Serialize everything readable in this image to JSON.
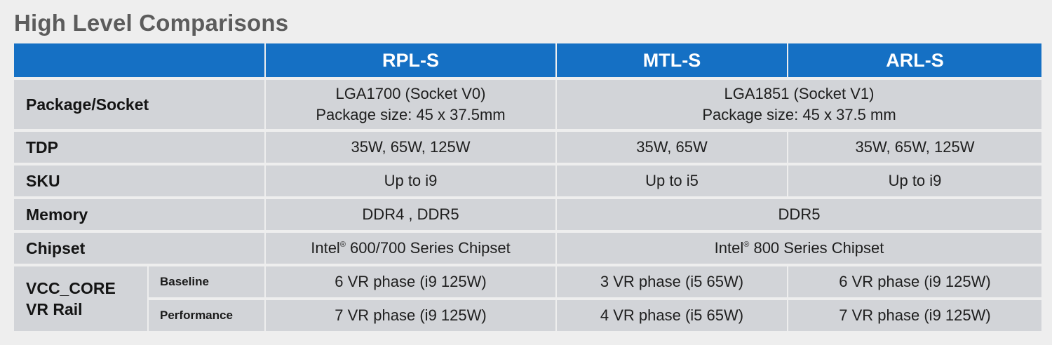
{
  "title": "High Level Comparisons",
  "columns": [
    "",
    "RPL-S",
    "MTL-S",
    "ARL-S"
  ],
  "rows": {
    "package": {
      "label": "Package/Socket",
      "rpl_line1": "LGA1700 (Socket V0)",
      "rpl_line2": "Package size: 45 x 37.5mm",
      "mtl_arl_line1": "LGA1851 (Socket V1)",
      "mtl_arl_line2": "Package size: 45 x 37.5 mm"
    },
    "tdp": {
      "label": "TDP",
      "rpl": "35W, 65W, 125W",
      "mtl": "35W, 65W",
      "arl": "35W, 65W, 125W"
    },
    "sku": {
      "label": "SKU",
      "rpl": "Up to i9",
      "mtl": "Up to i5",
      "arl": "Up to i9"
    },
    "memory": {
      "label": "Memory",
      "rpl": "DDR4 , DDR5",
      "mtl_arl": "DDR5"
    },
    "chipset": {
      "label": "Chipset",
      "rpl_prefix": "Intel",
      "rpl_suffix": " 600/700 Series Chipset",
      "mtl_arl_prefix": "Intel",
      "mtl_arl_suffix": " 800 Series Chipset",
      "reg_mark": "®"
    },
    "vcc": {
      "label_line1": "VCC_CORE",
      "label_line2": "VR Rail",
      "baseline": {
        "label": "Baseline",
        "rpl": "6 VR phase (i9 125W)",
        "mtl": "3 VR phase (i5 65W)",
        "arl": "6 VR phase (i9 125W)"
      },
      "performance": {
        "label": "Performance",
        "rpl": "7 VR phase (i9 125W)",
        "mtl": "4 VR phase (i5 65W)",
        "arl": "7 VR phase (i9 125W)"
      }
    }
  },
  "colors": {
    "header_bg": "#1570c4",
    "cell_bg": "#d2d4d8",
    "page_bg": "#eeeeee",
    "title_color": "#5c5c5c"
  }
}
